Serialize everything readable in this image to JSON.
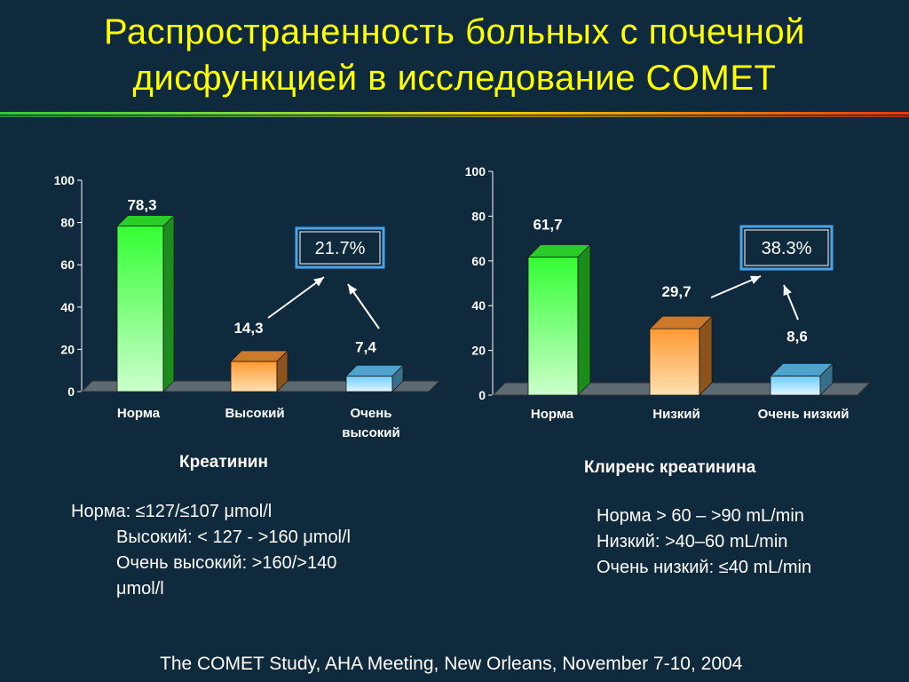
{
  "slide": {
    "title_line1": "Распространенность больных с почечной",
    "title_line2": "дисфункцией в исследование COMET",
    "footer": "The COMET Study, AHA Meeting, New Orleans, November 7-10, 2004"
  },
  "left_notes": {
    "line1": "Норма: ≤127/≤107 μmol/l",
    "line2": "Высокий: < 127 - >160 μmol/l",
    "line3": "Очень высокий: >160/>140",
    "line4": "μmol/l"
  },
  "right_notes": {
    "line1": "Норма > 60 – >90 mL/min",
    "line2": "Низкий: >40–60 mL/min",
    "line3": "Очень низкий: ≤40 mL/min"
  },
  "colors": {
    "title": "#ffff00",
    "background": "#0f2a3c",
    "bar_green": "#33ff33",
    "bar_orange": "#ff9933",
    "bar_cyan": "#66ccff",
    "callout_border": "#4aa3e8"
  },
  "chart_data": [
    {
      "type": "bar",
      "caption": "Креатинин",
      "categories": [
        [
          "Норма"
        ],
        [
          "Высокий"
        ],
        [
          "Очень",
          "высокий"
        ]
      ],
      "values": [
        78.3,
        14.3,
        7.4
      ],
      "value_labels": [
        "78,3",
        "14,3",
        "7,4"
      ],
      "colors": [
        "green",
        "orange",
        "cyan"
      ],
      "ylim": [
        0,
        100
      ],
      "yticks": [
        0,
        20,
        40,
        60,
        80,
        100
      ],
      "callout": "21.7%"
    },
    {
      "type": "bar",
      "caption": "Клиренс креатинина",
      "categories": [
        [
          "Норма"
        ],
        [
          "Низкий"
        ],
        [
          "Очень низкий"
        ]
      ],
      "values": [
        61.7,
        29.7,
        8.6
      ],
      "value_labels": [
        "61,7",
        "29,7",
        "8,6"
      ],
      "colors": [
        "green",
        "orange",
        "cyan"
      ],
      "ylim": [
        0,
        100
      ],
      "yticks": [
        0,
        20,
        40,
        60,
        80,
        100
      ],
      "callout": "38.3%"
    }
  ]
}
